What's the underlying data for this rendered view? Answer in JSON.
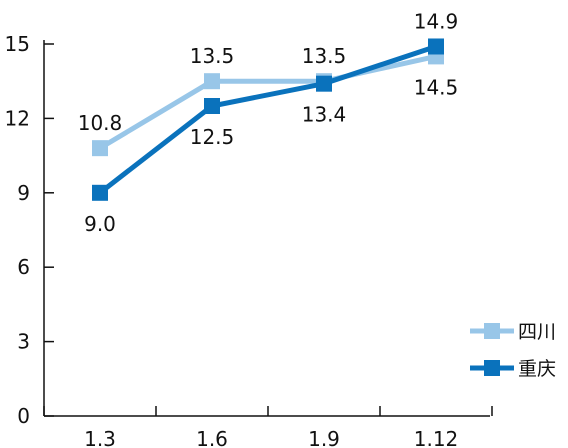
{
  "chart_data": {
    "type": "line",
    "title": "",
    "xlabel": "",
    "ylabel": "",
    "categories": [
      "1.3",
      "1.6",
      "1.9",
      "1.12"
    ],
    "ylim": [
      0,
      15
    ],
    "yticks": [
      0,
      3,
      6,
      9,
      12,
      15
    ],
    "grid": false,
    "legend_position": "bottom-right",
    "series": [
      {
        "name": "四川",
        "values": [
          10.8,
          13.5,
          13.5,
          14.5
        ],
        "labels": [
          "10.8",
          "13.5",
          "13.5",
          "14.5"
        ],
        "color": "#98c6e8",
        "marker": "square"
      },
      {
        "name": "重庆",
        "values": [
          9.0,
          12.5,
          13.4,
          14.9
        ],
        "labels": [
          "9.0",
          "12.5",
          "13.4",
          "14.9"
        ],
        "color": "#0a72bc",
        "marker": "square"
      }
    ]
  }
}
